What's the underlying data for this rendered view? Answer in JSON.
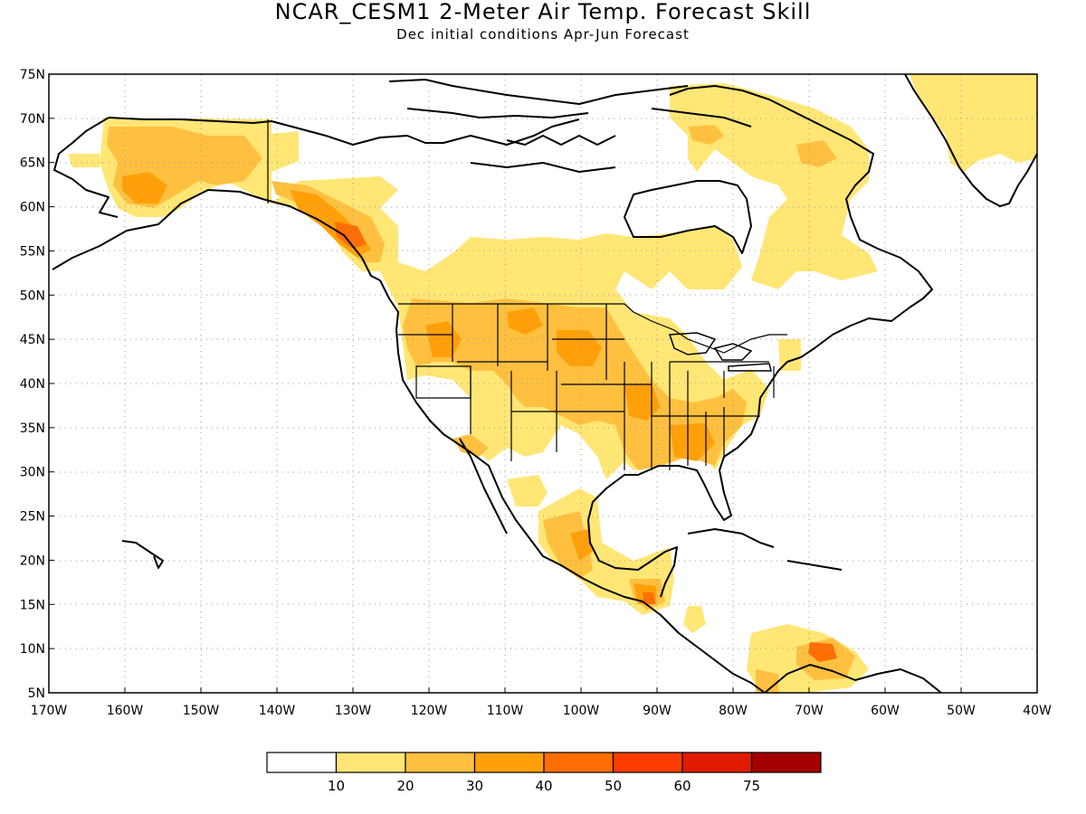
{
  "title": "NCAR_CESM1 2-Meter Air Temp. Forecast Skill",
  "subtitle": "Dec initial conditions  Apr-Jun Forecast",
  "lat_labels": [
    "75N",
    "70N",
    "65N",
    "60N",
    "55N",
    "50N",
    "45N",
    "40N",
    "35N",
    "30N",
    "25N",
    "20N",
    "15N",
    "10N",
    "5N"
  ],
  "lat_values": [
    75,
    70,
    65,
    60,
    55,
    50,
    45,
    40,
    35,
    30,
    25,
    20,
    15,
    10,
    5
  ],
  "lon_labels": [
    "170W",
    "160W",
    "150W",
    "140W",
    "130W",
    "120W",
    "110W",
    "100W",
    "90W",
    "80W",
    "70W",
    "60W",
    "50W",
    "40W"
  ],
  "lon_values": [
    -170,
    -160,
    -150,
    -140,
    -130,
    -120,
    -110,
    -100,
    -90,
    -80,
    -70,
    -60,
    -50,
    -40
  ],
  "lat_range": [
    5,
    75
  ],
  "lon_range": [
    -170,
    -40
  ],
  "grid": "dotted",
  "legend": {
    "colors": [
      "#ffffff",
      "#ffe675",
      "#ffc040",
      "#ffa00a",
      "#ff6e05",
      "#ff3c00",
      "#e01b00",
      "#a50000"
    ],
    "labels": [
      "10",
      "20",
      "30",
      "40",
      "50",
      "60",
      "75"
    ]
  }
}
